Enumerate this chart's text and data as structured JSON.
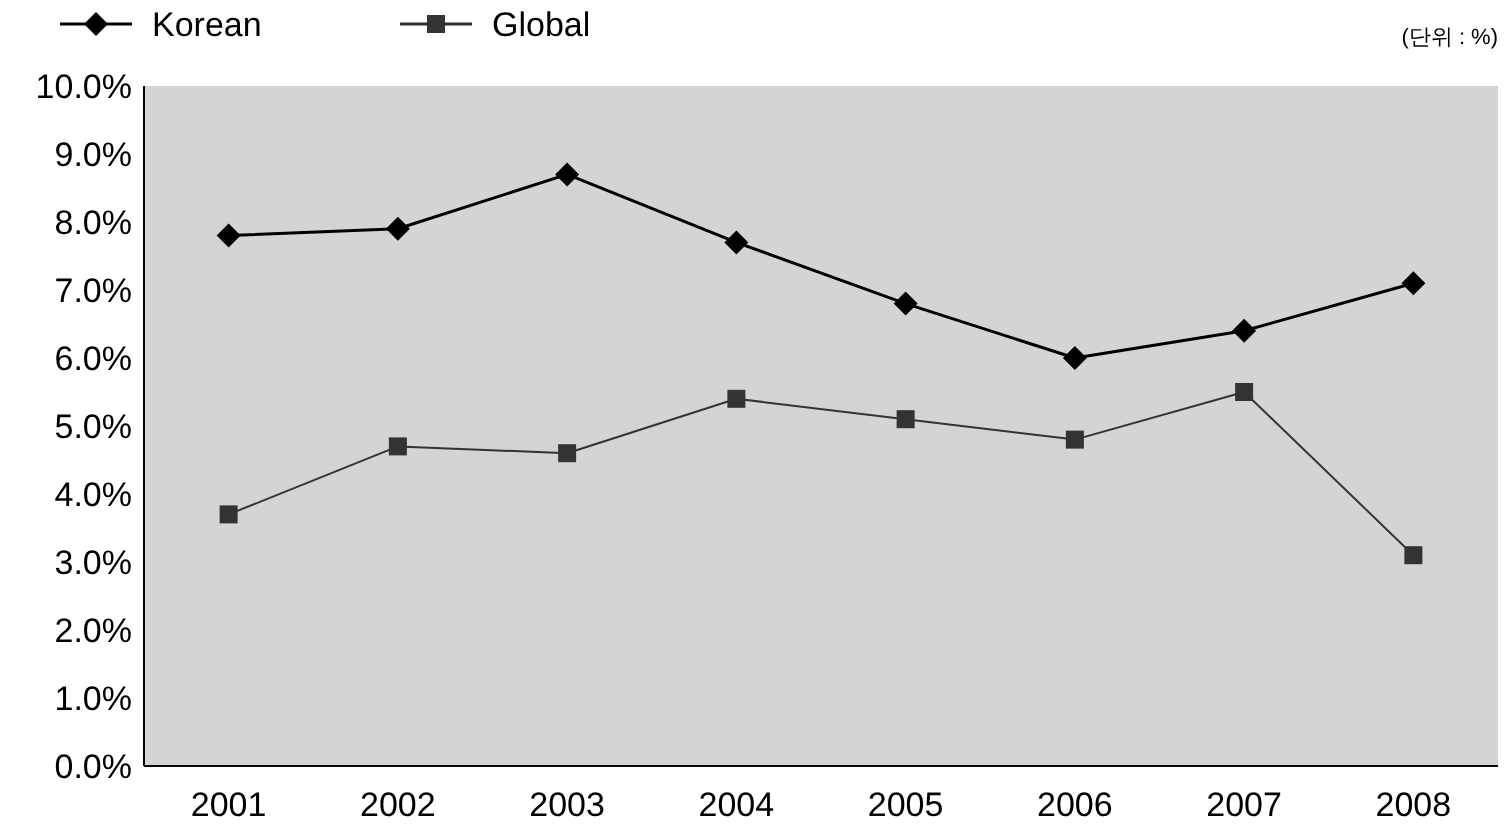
{
  "chart_data": {
    "type": "line",
    "categories": [
      "2001",
      "2002",
      "2003",
      "2004",
      "2005",
      "2006",
      "2007",
      "2008"
    ],
    "series": [
      {
        "name": "Korean",
        "color": "#000000",
        "marker": "diamond",
        "values": [
          7.8,
          7.9,
          8.7,
          7.7,
          6.8,
          6.0,
          6.4,
          7.1
        ]
      },
      {
        "name": "Global",
        "color": "#333333",
        "marker": "square",
        "values": [
          3.7,
          4.7,
          4.6,
          5.4,
          5.1,
          4.8,
          5.5,
          3.1
        ]
      }
    ],
    "ylim": [
      0,
      10
    ],
    "yticks": [
      {
        "value": 0,
        "label": "0.0%"
      },
      {
        "value": 1,
        "label": "1.0%"
      },
      {
        "value": 2,
        "label": "2.0%"
      },
      {
        "value": 3,
        "label": "3.0%"
      },
      {
        "value": 4,
        "label": "4.0%"
      },
      {
        "value": 5,
        "label": "5.0%"
      },
      {
        "value": 6,
        "label": "6.0%"
      },
      {
        "value": 7,
        "label": "7.0%"
      },
      {
        "value": 8,
        "label": "8.0%"
      },
      {
        "value": 9,
        "label": "9.0%"
      },
      {
        "value": 10,
        "label": "10.0%"
      }
    ],
    "annotations": [
      "(단위 : %)"
    ],
    "legend": "top left",
    "grid": false,
    "line_style": "solid"
  }
}
